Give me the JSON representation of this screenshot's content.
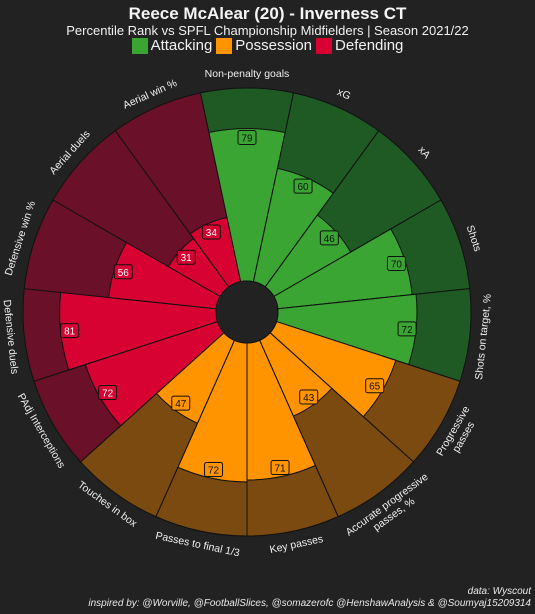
{
  "header": {
    "title": "Reece McAlear (20) - Inverness CT",
    "subtitle": "Percentile Rank vs SPFL Championship Midfielders | Season 2021/22"
  },
  "legend": [
    {
      "label": "Attacking",
      "color": "#3aa532"
    },
    {
      "label": "Possession",
      "color": "#ff9300"
    },
    {
      "label": "Defending",
      "color": "#d70232"
    }
  ],
  "footer": {
    "source": "data: Wyscout",
    "credits": "inspired by: @Worville, @FootballSlices, @somazerofc @HenshawAnalysis & @Soumyaj15209314"
  },
  "chart_data": {
    "type": "radial_bar",
    "ylim": [
      0,
      100
    ],
    "categories": [
      "Non-penalty goals",
      "xG",
      "xA",
      "Shots",
      "Shots on target, %",
      "Progressive passes",
      "Accurate progressive passes, %",
      "Key passes",
      "Passes to final 1/3",
      "Touches in box",
      "PAdj Interceptions",
      "Defensive duels",
      "Defensive win %",
      "Aerial duels",
      "Aerial win %"
    ],
    "values": [
      79,
      60,
      46,
      70,
      72,
      65,
      43,
      71,
      72,
      47,
      72,
      81,
      56,
      31,
      34
    ],
    "groups": [
      "Attacking",
      "Attacking",
      "Attacking",
      "Attacking",
      "Attacking",
      "Possession",
      "Possession",
      "Possession",
      "Possession",
      "Possession",
      "Defending",
      "Defending",
      "Defending",
      "Defending",
      "Defending"
    ],
    "colors": {
      "Attacking": {
        "fill": "#3aa532",
        "background": "#1f5a24"
      },
      "Possession": {
        "fill": "#ff9300",
        "background": "#7a4a10"
      },
      "Defending": {
        "fill": "#d70232",
        "background": "#6a1028"
      }
    }
  }
}
